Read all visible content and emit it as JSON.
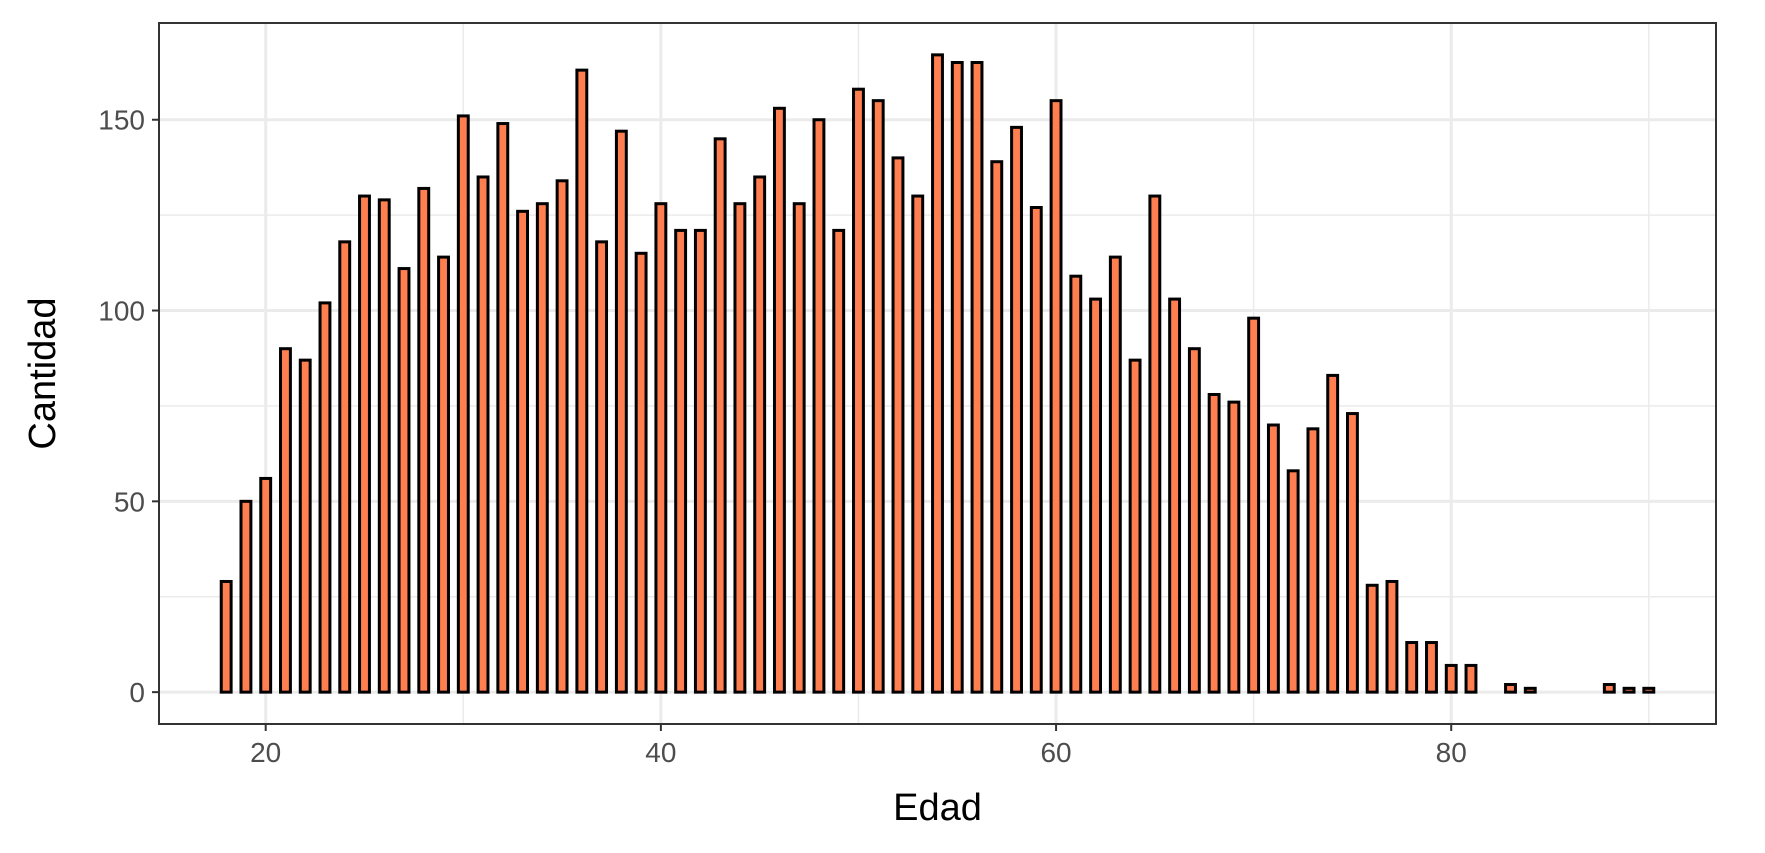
{
  "chart_data": {
    "type": "bar",
    "xlabel": "Edad",
    "ylabel": "Cantidad",
    "xlim": [
      14.6,
      93.4
    ],
    "ylim": [
      -8.35,
      175.35
    ],
    "x_ticks": [
      20,
      40,
      60,
      80
    ],
    "y_ticks": [
      0,
      50,
      100,
      150
    ],
    "x_tick_labels": [
      "20",
      "40",
      "60",
      "80"
    ],
    "y_tick_labels": [
      "0",
      "50",
      "100",
      "150"
    ],
    "grid": true,
    "legend": "none",
    "bar_fill": "#FF7F50",
    "bar_outline": "#000000",
    "panel_border": "#333333",
    "grid_color": "#EBEBEB",
    "x": [
      18,
      19,
      20,
      21,
      22,
      23,
      24,
      25,
      26,
      27,
      28,
      29,
      30,
      31,
      32,
      33,
      34,
      35,
      36,
      37,
      38,
      39,
      40,
      41,
      42,
      43,
      44,
      45,
      46,
      47,
      48,
      49,
      50,
      51,
      52,
      53,
      54,
      55,
      56,
      57,
      58,
      59,
      60,
      61,
      62,
      63,
      64,
      65,
      66,
      67,
      68,
      69,
      70,
      71,
      72,
      73,
      74,
      75,
      76,
      77,
      78,
      79,
      80,
      81,
      82,
      83,
      84,
      85,
      86,
      87,
      88,
      89,
      90
    ],
    "values": [
      29,
      50,
      56,
      90,
      87,
      102,
      118,
      130,
      129,
      111,
      132,
      114,
      151,
      135,
      149,
      126,
      128,
      134,
      163,
      118,
      147,
      115,
      128,
      121,
      121,
      145,
      128,
      135,
      153,
      128,
      150,
      121,
      158,
      155,
      140,
      130,
      167,
      165,
      165,
      139,
      148,
      127,
      155,
      109,
      103,
      114,
      87,
      130,
      103,
      90,
      78,
      76,
      98,
      70,
      58,
      69,
      83,
      73,
      28,
      29,
      13,
      13,
      7,
      7,
      0,
      2,
      1,
      0,
      0,
      0,
      2,
      1,
      1
    ]
  }
}
